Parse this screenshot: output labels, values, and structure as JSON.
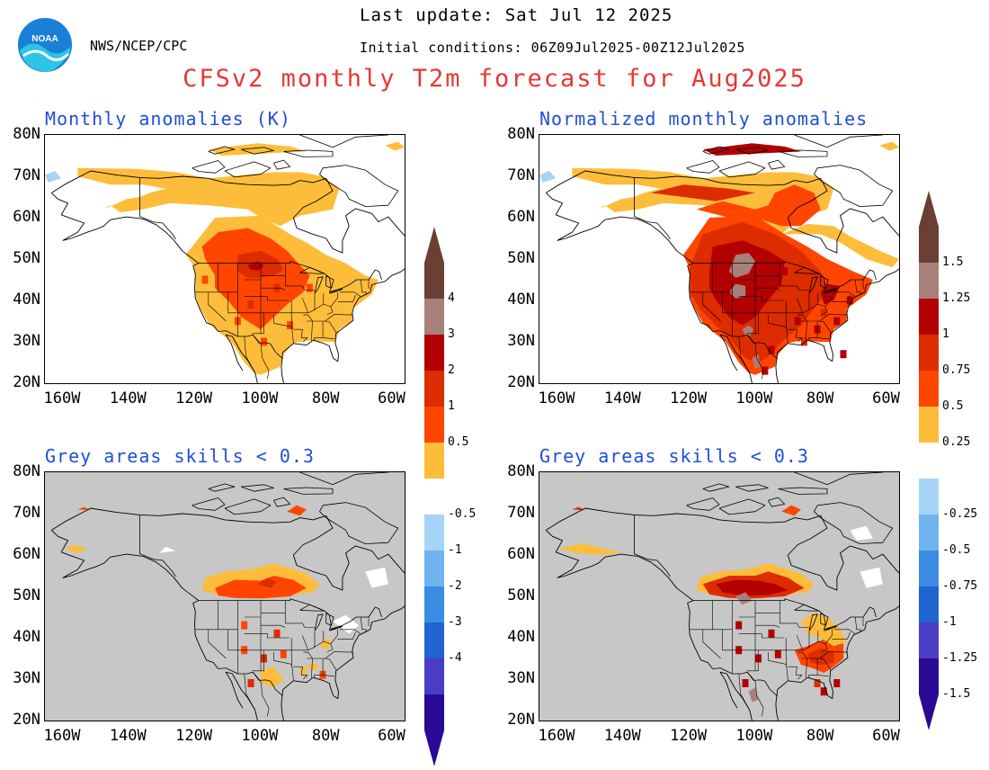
{
  "header": {
    "last_update": "Last update: Sat Jul 12 2025",
    "initial_conditions": "Initial conditions: 06Z09Jul2025-00Z12Jul2025",
    "org": "NWS/NCEP/CPC",
    "logo_text": "NOAA",
    "title": "CFSv2 monthly T2m forecast for Aug2025"
  },
  "panels": {
    "top_left": {
      "title": "Monthly anomalies (K)"
    },
    "top_right": {
      "title": "Normalized monthly anomalies"
    },
    "bottom_left": {
      "title": "Grey areas skills < 0.3"
    },
    "bottom_right": {
      "title": "Grey areas skills < 0.3"
    }
  },
  "axes": {
    "lat_labels": [
      "80N",
      "70N",
      "60N",
      "50N",
      "40N",
      "30N",
      "20N"
    ],
    "lon_labels": [
      "160W",
      "140W",
      "120W",
      "100W",
      "80W",
      "60W"
    ]
  },
  "colorbar_left": {
    "labels": [
      "4",
      "3",
      "2",
      "1",
      "0.5",
      "-0.5",
      "-1",
      "-2",
      "-3",
      "-4"
    ]
  },
  "colorbar_right": {
    "labels": [
      "1.5",
      "1.25",
      "1",
      "0.75",
      "0.5",
      "0.25",
      "-0.25",
      "-0.5",
      "-0.75",
      "-1",
      "-1.25",
      "-1.5"
    ]
  },
  "colors": {
    "c05": "#fdbd3b",
    "c1": "#ff4500",
    "c2": "#dc2c00",
    "c3": "#b30000",
    "c4": "#a8807a",
    "c5": "#6b3f34",
    "n05": "#a6d4f7",
    "n1": "#6fb4ef",
    "n2": "#3a8de3",
    "n3": "#1f64d0",
    "n4": "#4b3cc6",
    "n5": "#2a0a95",
    "grey": "#c7c7c7",
    "title_red": "#e53935",
    "panel_title_blue": "#1e4fd8"
  }
}
